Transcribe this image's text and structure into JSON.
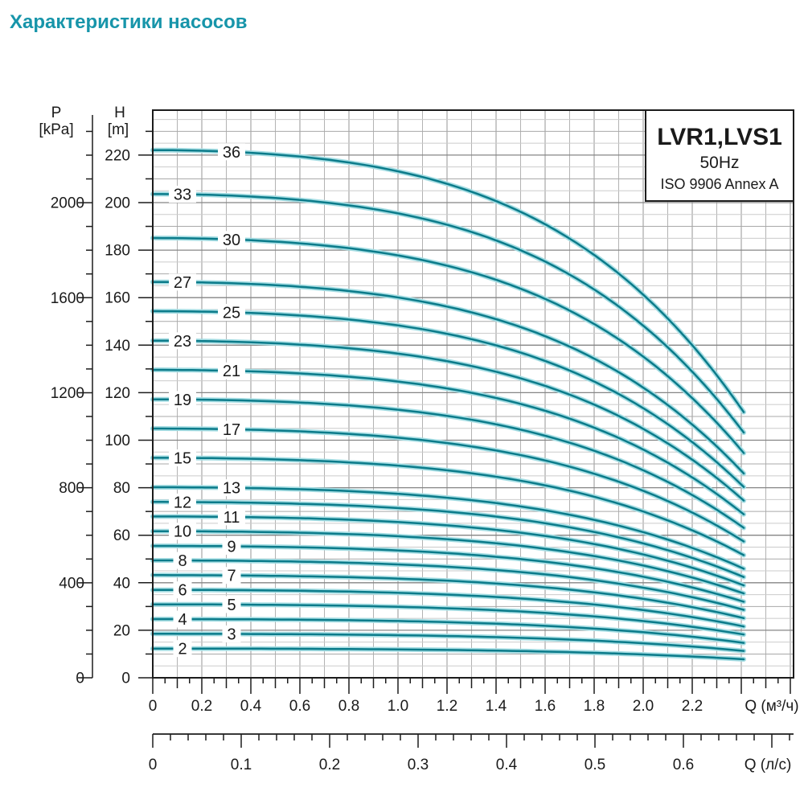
{
  "page": {
    "title": "Характеристики насосов"
  },
  "legend": {
    "model": "LVR1,LVS1",
    "frequency": "50Hz",
    "standard": "ISO 9906 Annex A"
  },
  "colors": {
    "title": "#1795aa",
    "curve": "#0b7b8a",
    "curve_halo": "#a5dde3",
    "axis": "#1c1c1c",
    "grid_light": "#cbcbcb",
    "grid_mid": "#a9a9a9",
    "grid_dark": "#858585",
    "grid_v_light": "#b3b3b3",
    "grid_v_dark": "#969696"
  },
  "chart_data": {
    "type": "line",
    "title": "Характеристики насосов",
    "grid": "on",
    "legend_position": "top-right",
    "x_axes": [
      {
        "label": "Q (м³/ч)",
        "tick_labels": [
          "0",
          "0.2",
          "0.4",
          "0.6",
          "0.8",
          "1.0",
          "1.2",
          "1.4",
          "1.6",
          "1.8",
          "2.0",
          "2.2"
        ],
        "tick_step": 0.2,
        "minor_step": 0.05,
        "range": [
          0,
          2.61
        ]
      },
      {
        "label": "Q (л/с)",
        "tick_labels": [
          "0",
          "0.1",
          "0.2",
          "0.3",
          "0.4",
          "0.5",
          "0.6"
        ],
        "tick_step": 0.1,
        "minor_step": 0.02,
        "range": [
          0,
          0.725
        ]
      }
    ],
    "y_axes": [
      {
        "name": "H",
        "unit": "[m]",
        "tick_labels": [
          "0",
          "20",
          "40",
          "60",
          "80",
          "100",
          "120",
          "140",
          "160",
          "180",
          "200",
          "220"
        ],
        "tick_step": 20,
        "minor_step": 10,
        "range": [
          0,
          239
        ]
      },
      {
        "name": "P",
        "unit": "[kPa]",
        "tick_labels": [
          "0",
          "400",
          "800",
          "1200",
          "1600",
          "2000"
        ],
        "tick_step": 400,
        "minor_step": 100,
        "range": [
          0,
          2370
        ]
      }
    ],
    "q_max_m3h": 2.41,
    "curve_shape": "H(q) = h0 - (h0 - h_end) * (0.36*(q/2.41)^2 + 0.64*(q/2.41)^4)",
    "series": [
      {
        "label": "36",
        "stages": 36,
        "h0_m": 222.1,
        "h_end_m": 111.8
      },
      {
        "label": "33",
        "stages": 33,
        "h0_m": 203.6,
        "h_end_m": 103.2
      },
      {
        "label": "30",
        "stages": 30,
        "h0_m": 185.1,
        "h_end_m": 94.6
      },
      {
        "label": "27",
        "stages": 27,
        "h0_m": 166.6,
        "h_end_m": 86.0
      },
      {
        "label": "25",
        "stages": 25,
        "h0_m": 154.3,
        "h_end_m": 80.3
      },
      {
        "label": "23",
        "stages": 23,
        "h0_m": 141.9,
        "h_end_m": 74.6
      },
      {
        "label": "21",
        "stages": 21,
        "h0_m": 129.6,
        "h_end_m": 68.8
      },
      {
        "label": "19",
        "stages": 19,
        "h0_m": 117.2,
        "h_end_m": 63.1
      },
      {
        "label": "17",
        "stages": 17,
        "h0_m": 104.9,
        "h_end_m": 57.4
      },
      {
        "label": "15",
        "stages": 15,
        "h0_m": 92.6,
        "h_end_m": 51.6
      },
      {
        "label": "13",
        "stages": 13,
        "h0_m": 80.2,
        "h_end_m": 45.9
      },
      {
        "label": "12",
        "stages": 12,
        "h0_m": 74.0,
        "h_end_m": 42.4
      },
      {
        "label": "11",
        "stages": 11,
        "h0_m": 67.9,
        "h_end_m": 38.9
      },
      {
        "label": "10",
        "stages": 10,
        "h0_m": 61.7,
        "h_end_m": 35.5
      },
      {
        "label": "9",
        "stages": 9,
        "h0_m": 55.5,
        "h_end_m": 32.0
      },
      {
        "label": "8",
        "stages": 8,
        "h0_m": 49.4,
        "h_end_m": 28.6
      },
      {
        "label": "7",
        "stages": 7,
        "h0_m": 43.2,
        "h_end_m": 25.1
      },
      {
        "label": "6",
        "stages": 6,
        "h0_m": 37.0,
        "h_end_m": 21.6
      },
      {
        "label": "5",
        "stages": 5,
        "h0_m": 30.9,
        "h_end_m": 18.2
      },
      {
        "label": "4",
        "stages": 4,
        "h0_m": 24.7,
        "h_end_m": 14.7
      },
      {
        "label": "3",
        "stages": 3,
        "h0_m": 18.5,
        "h_end_m": 11.3
      },
      {
        "label": "2",
        "stages": 2,
        "h0_m": 12.3,
        "h_end_m": 7.8
      }
    ]
  }
}
